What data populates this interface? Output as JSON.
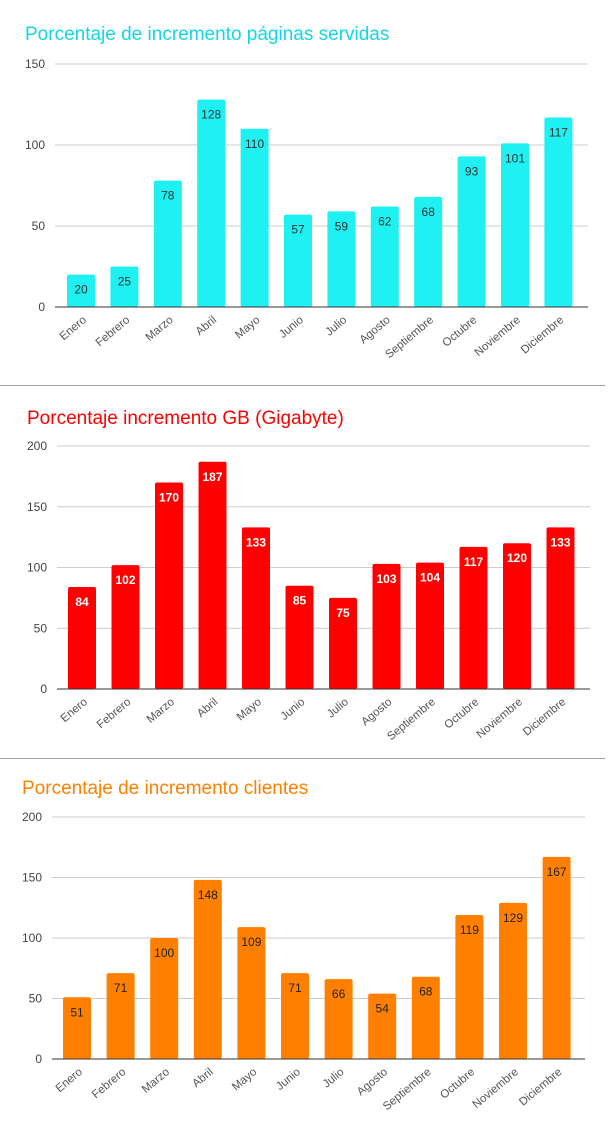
{
  "chart_data": [
    {
      "type": "bar",
      "title": "Porcentaje de incremento páginas servidas",
      "categories": [
        "Enero",
        "Febrero",
        "Marzo",
        "Abril",
        "Mayo",
        "Junio",
        "Julio",
        "Agosto",
        "Septiembre",
        "Octubre",
        "Noviembre",
        "Diciembre"
      ],
      "values": [
        20,
        25,
        78,
        128,
        110,
        57,
        59,
        62,
        68,
        93,
        101,
        117
      ],
      "ylim": [
        0,
        150
      ],
      "yticks": [
        0,
        50,
        100,
        150
      ],
      "grid": true,
      "color": "#1ff0f2",
      "title_color": "#13d6e6",
      "label_color": "#333333",
      "label_weight": "normal"
    },
    {
      "type": "bar",
      "title": "Porcentaje incremento GB (Gigabyte)",
      "categories": [
        "Enero",
        "Febrero",
        "Marzo",
        "Abril",
        "Mayo",
        "Junio",
        "Julio",
        "Agosto",
        "Septiembre",
        "Octubre",
        "Noviembre",
        "Diciembre"
      ],
      "values": [
        84,
        102,
        170,
        187,
        133,
        85,
        75,
        103,
        104,
        117,
        120,
        133
      ],
      "ylim": [
        0,
        200
      ],
      "yticks": [
        0,
        50,
        100,
        150,
        200
      ],
      "grid": true,
      "color": "#ff0000",
      "title_color": "#ff0000",
      "label_color": "#ffffff",
      "label_weight": "bold"
    },
    {
      "type": "bar",
      "title": "Porcentaje de incremento clientes",
      "categories": [
        "Enero",
        "Febrero",
        "Marzo",
        "Abril",
        "Mayo",
        "Junio",
        "Julio",
        "Agosto",
        "Septiembre",
        "Octubre",
        "Noviembre",
        "Diciembre"
      ],
      "values": [
        51,
        71,
        100,
        148,
        109,
        71,
        66,
        54,
        68,
        119,
        129,
        167
      ],
      "ylim": [
        0,
        200
      ],
      "yticks": [
        0,
        50,
        100,
        150,
        200
      ],
      "grid": true,
      "color": "#ff8000",
      "title_color": "#ff8000",
      "label_color": "#222222",
      "label_weight": "normal"
    }
  ]
}
